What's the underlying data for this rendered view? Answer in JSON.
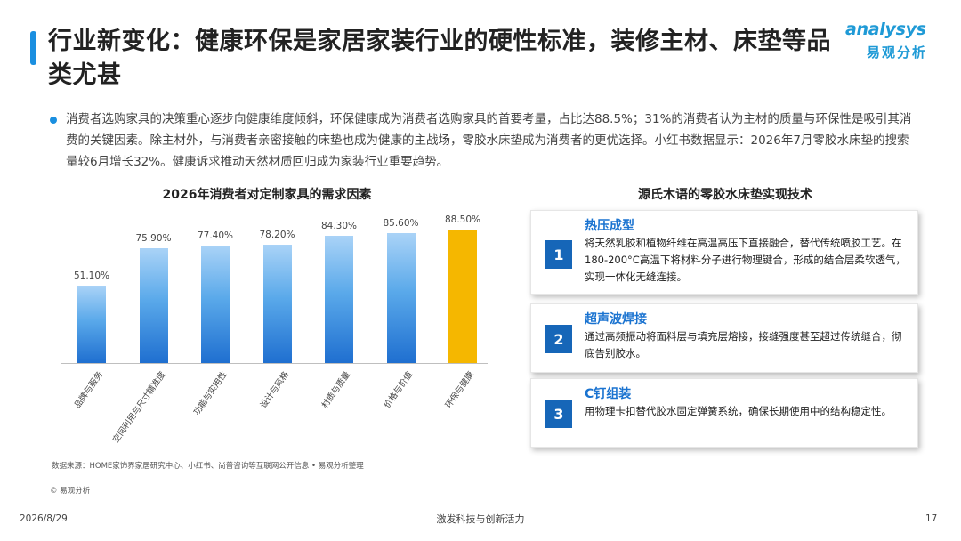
{
  "header": {
    "title": "行业新变化：健康环保是家居家装行业的硬性标准，装修主材、床垫等品类尤甚",
    "logo_en": "analysys",
    "logo_cn": "易观分析"
  },
  "intro": "消费者选购家具的决策重心逐步向健康维度倾斜，环保健康成为消费者选购家具的首要考量，占比达88.5%；31%的消费者认为主材的质量与环保性是吸引其消费的关键因素。除主材外，与消费者亲密接触的床垫也成为健康的主战场，零胶水床垫成为消费者的更优选择。小红书数据显示：2026年7月零胶水床垫的搜索量较6月增长32%。健康诉求推动天然材质回归成为家装行业重要趋势。",
  "chart_data": {
    "type": "bar",
    "title": "2026年消费者对定制家具的需求因素",
    "categories": [
      "品牌与服务",
      "空间利用与尺寸精准度",
      "功能与实用性",
      "设计与风格",
      "材质与质量",
      "价格与价值",
      "环保与健康"
    ],
    "values": [
      51.1,
      75.9,
      77.4,
      78.2,
      84.3,
      85.6,
      88.5
    ],
    "value_labels": [
      "51.10%",
      "75.90%",
      "77.40%",
      "78.20%",
      "84.30%",
      "85.60%",
      "88.50%"
    ],
    "highlight_index": 6,
    "ylim": [
      0,
      100
    ],
    "colors": {
      "bar": "#3b8fe3",
      "highlight": "#f5b700"
    }
  },
  "right_panel": {
    "title": "源氏木语的零胶水床垫实现技术",
    "steps": [
      {
        "num": "1",
        "heading": "热压成型",
        "body": "将天然乳胶和植物纤维在高温高压下直接融合，替代传统喷胶工艺。在180-200°C高温下将材料分子进行物理键合，形成的结合层柔软透气，实现一体化无缝连接。"
      },
      {
        "num": "2",
        "heading": "超声波焊接",
        "body": "通过高频振动将面料层与填充层熔接，接缝强度甚至超过传统缝合，彻底告别胶水。"
      },
      {
        "num": "3",
        "heading": "C钉组装",
        "body": "用物理卡扣替代胶水固定弹簧系统，确保长期使用中的结构稳定性。"
      }
    ]
  },
  "source": "数据来源：HOME家饰界家居研究中心、小红书、尚普咨询等互联网公开信息 • 易观分析整理",
  "copyright": "© 易观分析",
  "footer": {
    "date": "2026/8/29",
    "slogan": "激发科技与创新活力",
    "page": "17"
  },
  "colors": {
    "accent": "#1a8fe0",
    "step_badge": "#1666b8",
    "step_heading": "#1a73d0"
  }
}
